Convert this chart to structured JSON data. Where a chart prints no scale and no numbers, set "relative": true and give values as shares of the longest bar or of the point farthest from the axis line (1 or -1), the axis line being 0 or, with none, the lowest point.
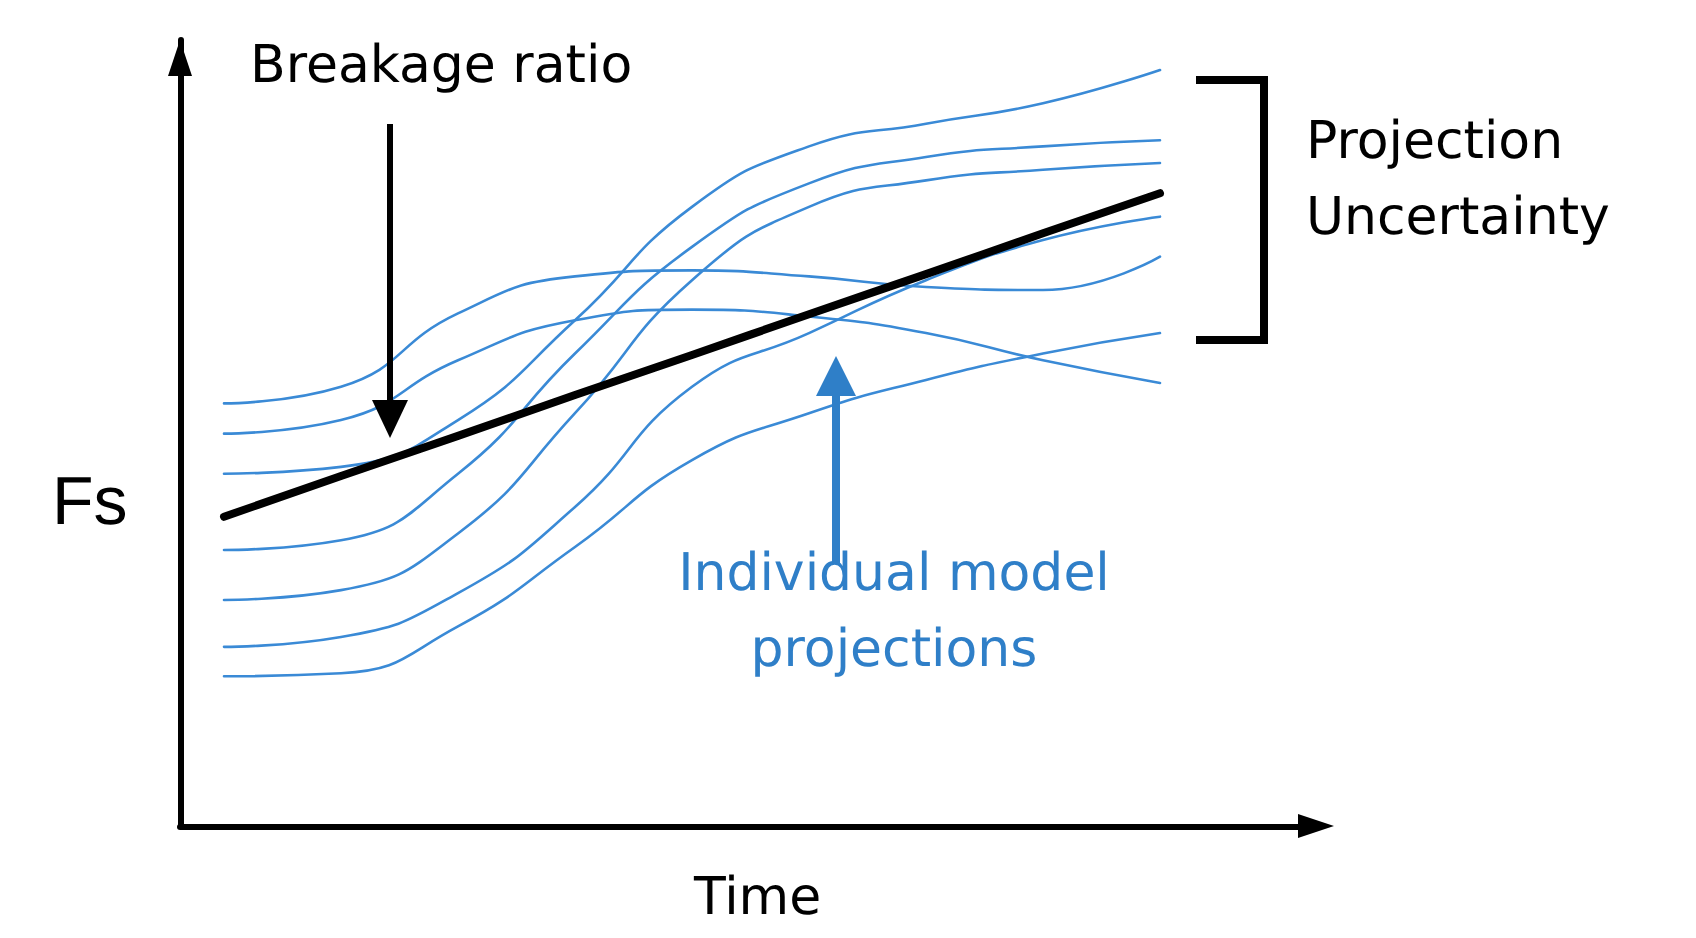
{
  "chart_data": {
    "type": "line",
    "relative": true,
    "xlabel": "Time",
    "ylabel": "Fs",
    "marker": "none",
    "annotations": [
      "Breakage ratio",
      "Projection Uncertainty",
      "Individual model projections"
    ],
    "categories": [
      null,
      null,
      null,
      null,
      null,
      null,
      null,
      null,
      null
    ],
    "series": [
      {
        "color": "#3a8ad6",
        "values": [
          0.559,
          0.581,
          0.678,
          0.727,
          0.735,
          0.727,
          0.713,
          0.709,
          0.753
        ]
      },
      {
        "color": "#3a8ad6",
        "values": [
          0.519,
          0.537,
          0.616,
          0.669,
          0.683,
          0.674,
          0.652,
          0.616,
          0.586
        ]
      },
      {
        "color": "#3a8ad6",
        "values": [
          0.466,
          0.475,
          0.537,
          0.669,
          0.819,
          0.899,
          0.929,
          0.956,
          1
        ]
      },
      {
        "color": "#3a8ad6",
        "values": [
          0.365,
          0.378,
          0.466,
          0.625,
          0.766,
          0.85,
          0.885,
          0.899,
          0.907
        ]
      },
      {
        "color": "#3a8ad6",
        "values": [
          0.299,
          0.312,
          0.387,
          0.546,
          0.722,
          0.819,
          0.854,
          0.868,
          0.877
        ]
      },
      {
        "color": "#3a8ad6",
        "values": [
          0.237,
          0.25,
          0.308,
          0.422,
          0.581,
          0.652,
          0.722,
          0.775,
          0.806
        ]
      },
      {
        "color": "#3a8ad6",
        "values": [
          0.198,
          0.202,
          0.264,
          0.369,
          0.484,
          0.546,
          0.59,
          0.625,
          0.652
        ]
      },
      {
        "color": "#000000",
        "values": [
          0.409,
          0.463,
          0.516,
          0.57,
          0.623,
          0.677,
          0.73,
          0.784,
          0.837
        ]
      }
    ]
  }
}
